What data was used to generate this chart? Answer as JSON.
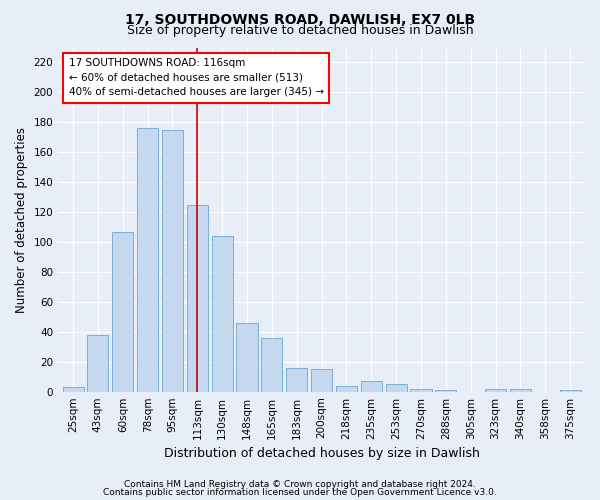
{
  "title1": "17, SOUTHDOWNS ROAD, DAWLISH, EX7 0LB",
  "title2": "Size of property relative to detached houses in Dawlish",
  "xlabel": "Distribution of detached houses by size in Dawlish",
  "ylabel": "Number of detached properties",
  "categories": [
    "25sqm",
    "43sqm",
    "60sqm",
    "78sqm",
    "95sqm",
    "113sqm",
    "130sqm",
    "148sqm",
    "165sqm",
    "183sqm",
    "200sqm",
    "218sqm",
    "235sqm",
    "253sqm",
    "270sqm",
    "288sqm",
    "305sqm",
    "323sqm",
    "340sqm",
    "358sqm",
    "375sqm"
  ],
  "values": [
    3,
    38,
    107,
    176,
    175,
    125,
    104,
    46,
    36,
    16,
    15,
    4,
    7,
    5,
    2,
    1,
    0,
    2,
    2,
    0,
    1
  ],
  "bar_color": "#c5d8ef",
  "bar_edge_color": "#7aafd4",
  "highlight_index": 5,
  "highlight_color": "#cc0000",
  "ylim": [
    0,
    230
  ],
  "yticks": [
    0,
    20,
    40,
    60,
    80,
    100,
    120,
    140,
    160,
    180,
    200,
    220
  ],
  "annotation_title": "17 SOUTHDOWNS ROAD: 116sqm",
  "annotation_line1": "← 60% of detached houses are smaller (513)",
  "annotation_line2": "40% of semi-detached houses are larger (345) →",
  "footer1": "Contains HM Land Registry data © Crown copyright and database right 2024.",
  "footer2": "Contains public sector information licensed under the Open Government Licence v3.0.",
  "bg_color": "#e8eef8",
  "plot_bg_color": "#e8eef8",
  "grid_color": "#ffffff",
  "title_fontsize": 10,
  "subtitle_fontsize": 9,
  "axis_label_fontsize": 8.5,
  "tick_fontsize": 7.5,
  "annotation_fontsize": 7.5,
  "footer_fontsize": 6.5
}
